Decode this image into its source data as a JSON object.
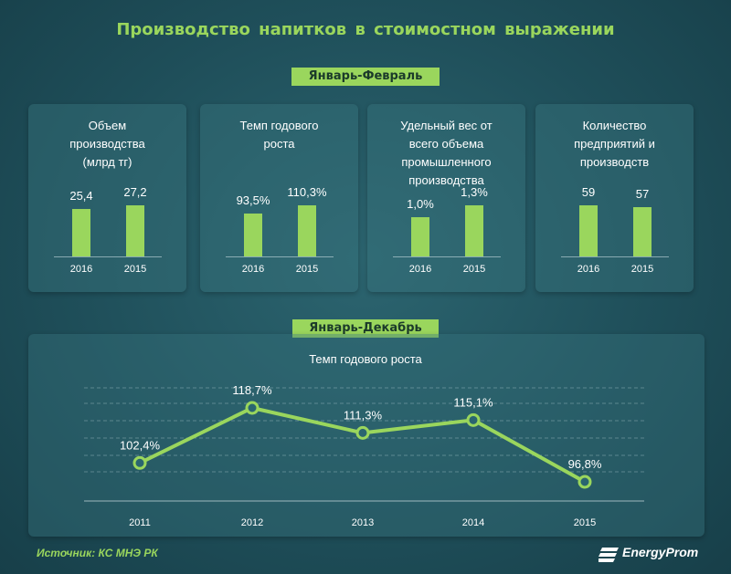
{
  "title": "Производство напитков в стоимостном выражении",
  "banner_top": "Январь-Февраль",
  "banner_bottom": "Январь-Декабрь",
  "chart_data": [
    {
      "type": "bar",
      "title": "Объем\nпроизводства\n(млрд тг)",
      "categories": [
        "2016",
        "2015"
      ],
      "values": [
        25.4,
        27.2
      ],
      "labels": [
        "25,4",
        "27,2"
      ]
    },
    {
      "type": "bar",
      "title": "Темп годового\nроста",
      "categories": [
        "2016",
        "2015"
      ],
      "values": [
        93.5,
        110.3
      ],
      "labels": [
        "93,5%",
        "110,3%"
      ]
    },
    {
      "type": "bar",
      "title": "Удельный вес от\nвсего объема\nпромышленного\nпроизводства",
      "categories": [
        "2016",
        "2015"
      ],
      "values": [
        1.0,
        1.3
      ],
      "labels": [
        "1,0%",
        "1,3%"
      ]
    },
    {
      "type": "bar",
      "title": "Количество\nпредприятий и\nпроизводств",
      "categories": [
        "2016",
        "2015"
      ],
      "values": [
        59,
        57
      ],
      "labels": [
        "59",
        "57"
      ]
    },
    {
      "type": "line",
      "title": "Темп годового роста",
      "x": [
        "2011",
        "2012",
        "2013",
        "2014",
        "2015"
      ],
      "values": [
        102.4,
        118.7,
        111.3,
        115.1,
        96.8
      ],
      "labels": [
        "102,4%",
        "118,7%",
        "111,3%",
        "115,1%",
        "96,8%"
      ],
      "grid": true
    }
  ],
  "source": "Источник: КС МНЭ РК",
  "logo_text": "EnergyProm",
  "colors": {
    "accent": "#9ad65d",
    "background": "#1f4f5a",
    "panel": "#37737d"
  }
}
